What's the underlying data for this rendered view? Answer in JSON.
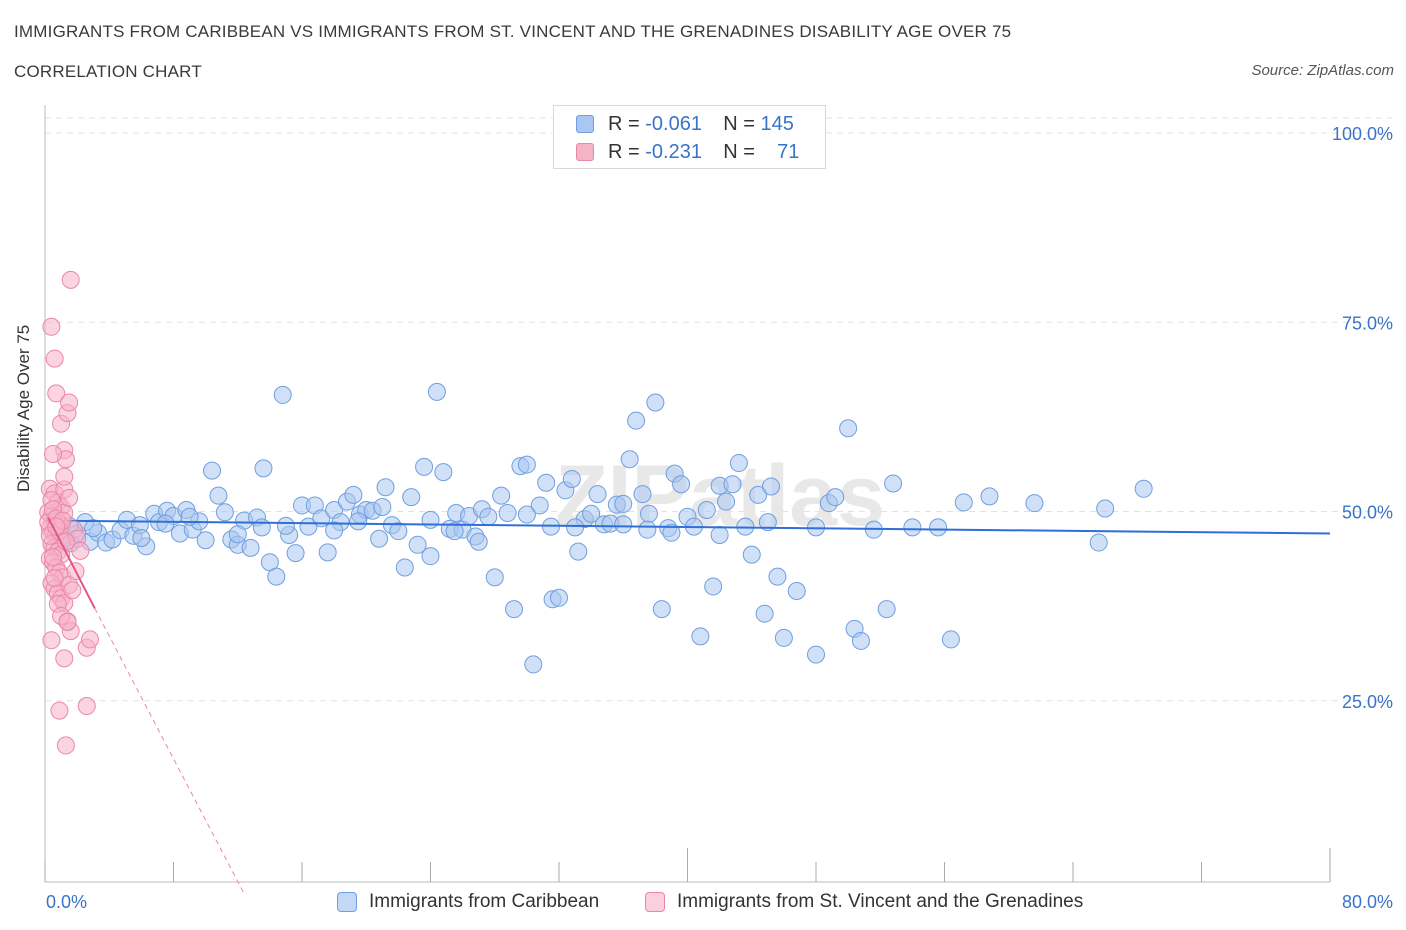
{
  "title": "IMMIGRANTS FROM CARIBBEAN VS IMMIGRANTS FROM ST. VINCENT AND THE GRENADINES DISABILITY AGE OVER 75",
  "subtitle": "CORRELATION CHART",
  "source": "Source: ZipAtlas.com",
  "watermark": "ZIPatlas",
  "legend": {
    "r_label": "R =",
    "n_label": "N =",
    "series1": {
      "r": "-0.061",
      "n": "145"
    },
    "series2": {
      "r": "-0.231",
      "n": "71"
    }
  },
  "colors": {
    "series1_fill": "#a9c7f0",
    "series1_stroke": "#6f9fe0",
    "series1_line": "#2f6fd6",
    "series2_fill": "#f5b3c8",
    "series2_stroke": "#ec86a8",
    "series2_line": "#e0558a",
    "axis_text": "#3a73c9",
    "grid": "#e2e2e2"
  },
  "chart_data": {
    "type": "scatter",
    "title": "IMMIGRANTS FROM CARIBBEAN VS IMMIGRANTS FROM ST. VINCENT AND THE GRENADINES DISABILITY AGE OVER 75",
    "xlabel": "",
    "ylabel": "Disability Age Over 75",
    "xlim": [
      0,
      80
    ],
    "ylim": [
      0,
      100
    ],
    "x_tick_labels": [
      "0.0%",
      "80.0%"
    ],
    "y_tick_labels": [
      "100.0%",
      "75.0%",
      "50.0%",
      "25.0%"
    ],
    "y_ticks": [
      100,
      75,
      50,
      25
    ],
    "grid": true,
    "legend_position": "top-center",
    "series": [
      {
        "name": "Immigrants from Caribbean",
        "r": -0.061,
        "n": 145,
        "trend": {
          "x": [
            0,
            80
          ],
          "y": [
            48.8,
            47.1
          ]
        },
        "points": [
          [
            0.8,
            47.8
          ],
          [
            1.2,
            46.5
          ],
          [
            1.6,
            45.8
          ],
          [
            2.0,
            47.1
          ],
          [
            2.5,
            48.6
          ],
          [
            2.8,
            46.0
          ],
          [
            3.3,
            47.2
          ],
          [
            3.8,
            45.9
          ],
          [
            4.2,
            46.3
          ],
          [
            4.7,
            47.5
          ],
          [
            5.1,
            48.9
          ],
          [
            5.5,
            46.8
          ],
          [
            5.9,
            48.2
          ],
          [
            6.3,
            45.4
          ],
          [
            6.8,
            49.7
          ],
          [
            7.1,
            48.6
          ],
          [
            7.6,
            50.1
          ],
          [
            8.0,
            49.4
          ],
          [
            8.4,
            47.1
          ],
          [
            8.8,
            50.2
          ],
          [
            9.2,
            47.6
          ],
          [
            9.6,
            48.7
          ],
          [
            10.0,
            46.2
          ],
          [
            10.4,
            55.4
          ],
          [
            10.8,
            52.1
          ],
          [
            11.2,
            49.9
          ],
          [
            11.6,
            46.3
          ],
          [
            12.0,
            45.6
          ],
          [
            12.4,
            48.8
          ],
          [
            12.8,
            45.2
          ],
          [
            13.2,
            49.2
          ],
          [
            13.6,
            55.7
          ],
          [
            14.0,
            43.3
          ],
          [
            14.4,
            41.4
          ],
          [
            14.8,
            65.4
          ],
          [
            15.2,
            46.9
          ],
          [
            15.6,
            44.5
          ],
          [
            16.0,
            50.8
          ],
          [
            16.4,
            48.0
          ],
          [
            16.8,
            50.8
          ],
          [
            17.2,
            49.1
          ],
          [
            17.6,
            44.6
          ],
          [
            18.0,
            50.2
          ],
          [
            18.4,
            48.6
          ],
          [
            18.8,
            51.3
          ],
          [
            19.2,
            52.2
          ],
          [
            19.6,
            49.6
          ],
          [
            20.0,
            50.2
          ],
          [
            20.4,
            50.1
          ],
          [
            20.8,
            46.4
          ],
          [
            21.2,
            53.2
          ],
          [
            21.6,
            48.2
          ],
          [
            22.0,
            47.4
          ],
          [
            22.4,
            42.6
          ],
          [
            22.8,
            51.9
          ],
          [
            23.2,
            45.6
          ],
          [
            23.6,
            55.9
          ],
          [
            24.0,
            44.1
          ],
          [
            24.4,
            65.8
          ],
          [
            24.8,
            55.2
          ],
          [
            25.2,
            47.7
          ],
          [
            25.6,
            49.8
          ],
          [
            26.0,
            47.6
          ],
          [
            26.4,
            49.4
          ],
          [
            26.8,
            46.7
          ],
          [
            27.2,
            50.3
          ],
          [
            27.6,
            49.3
          ],
          [
            28.0,
            41.3
          ],
          [
            28.4,
            52.1
          ],
          [
            28.8,
            49.8
          ],
          [
            29.2,
            37.1
          ],
          [
            29.6,
            56.0
          ],
          [
            30.0,
            56.2
          ],
          [
            30.4,
            29.8
          ],
          [
            30.8,
            50.8
          ],
          [
            31.2,
            53.8
          ],
          [
            31.6,
            38.4
          ],
          [
            32.0,
            38.6
          ],
          [
            32.4,
            52.8
          ],
          [
            32.8,
            54.3
          ],
          [
            33.2,
            44.7
          ],
          [
            33.6,
            49.0
          ],
          [
            34.0,
            49.7
          ],
          [
            34.4,
            52.3
          ],
          [
            34.8,
            48.3
          ],
          [
            35.2,
            48.4
          ],
          [
            35.6,
            50.9
          ],
          [
            36.0,
            51.0
          ],
          [
            36.4,
            56.9
          ],
          [
            36.8,
            62.0
          ],
          [
            37.2,
            52.3
          ],
          [
            37.6,
            49.7
          ],
          [
            38.0,
            64.4
          ],
          [
            38.4,
            37.1
          ],
          [
            38.8,
            47.8
          ],
          [
            39.2,
            55.0
          ],
          [
            39.6,
            53.6
          ],
          [
            40.0,
            49.3
          ],
          [
            40.4,
            48.0
          ],
          [
            40.8,
            33.5
          ],
          [
            41.2,
            50.2
          ],
          [
            41.6,
            40.1
          ],
          [
            42.0,
            53.4
          ],
          [
            42.4,
            51.3
          ],
          [
            42.8,
            53.6
          ],
          [
            43.2,
            56.4
          ],
          [
            43.6,
            48.0
          ],
          [
            44.0,
            44.3
          ],
          [
            44.4,
            52.2
          ],
          [
            44.8,
            36.5
          ],
          [
            45.2,
            53.3
          ],
          [
            45.6,
            41.4
          ],
          [
            46.0,
            33.3
          ],
          [
            46.8,
            39.5
          ],
          [
            48.0,
            31.1
          ],
          [
            48.8,
            51.1
          ],
          [
            49.2,
            51.9
          ],
          [
            50.0,
            61.0
          ],
          [
            50.4,
            34.5
          ],
          [
            50.8,
            32.9
          ],
          [
            51.6,
            47.6
          ],
          [
            52.4,
            37.1
          ],
          [
            52.8,
            53.7
          ],
          [
            54.0,
            47.9
          ],
          [
            55.6,
            47.9
          ],
          [
            56.4,
            33.1
          ],
          [
            57.2,
            51.2
          ],
          [
            58.8,
            52.0
          ],
          [
            61.6,
            51.1
          ],
          [
            65.6,
            45.9
          ],
          [
            66.0,
            50.4
          ],
          [
            68.4,
            53.0
          ],
          [
            3.0,
            47.8
          ],
          [
            6.0,
            46.5
          ],
          [
            9.0,
            49.3
          ],
          [
            12.0,
            47.0
          ],
          [
            15.0,
            48.1
          ],
          [
            18.0,
            47.5
          ],
          [
            21.0,
            50.6
          ],
          [
            24.0,
            48.9
          ],
          [
            27.0,
            46.0
          ],
          [
            30.0,
            49.6
          ],
          [
            33.0,
            47.9
          ],
          [
            36.0,
            48.3
          ],
          [
            39.0,
            47.2
          ],
          [
            42.0,
            46.9
          ],
          [
            45.0,
            48.6
          ],
          [
            48.0,
            47.9
          ],
          [
            1.5,
            48.1
          ],
          [
            7.5,
            48.4
          ],
          [
            13.5,
            47.9
          ],
          [
            19.5,
            48.7
          ],
          [
            25.5,
            47.4
          ],
          [
            31.5,
            48.0
          ],
          [
            37.5,
            47.6
          ]
        ]
      },
      {
        "name": "Immigrants from St. Vincent and the Grenadines",
        "r": -0.231,
        "n": 71,
        "trend": {
          "x": [
            0.2,
            3.1
          ],
          "y": [
            49.2,
            37.2
          ]
        },
        "trend_extended": {
          "x": [
            3.1,
            12.4
          ],
          "y": [
            37.2,
            -0.5
          ]
        },
        "points": [
          [
            0.4,
            74.4
          ],
          [
            0.6,
            70.2
          ],
          [
            0.7,
            65.6
          ],
          [
            1.0,
            61.6
          ],
          [
            1.2,
            58.1
          ],
          [
            1.4,
            63.0
          ],
          [
            1.6,
            80.6
          ],
          [
            1.5,
            64.4
          ],
          [
            1.3,
            56.9
          ],
          [
            0.5,
            57.6
          ],
          [
            0.3,
            53.0
          ],
          [
            0.6,
            52.4
          ],
          [
            0.8,
            51.2
          ],
          [
            1.0,
            50.6
          ],
          [
            1.2,
            49.8
          ],
          [
            0.4,
            49.4
          ],
          [
            0.6,
            48.9
          ],
          [
            0.8,
            48.4
          ],
          [
            1.0,
            48.1
          ],
          [
            0.3,
            47.8
          ],
          [
            0.5,
            47.3
          ],
          [
            0.7,
            46.9
          ],
          [
            0.9,
            46.5
          ],
          [
            1.1,
            46.1
          ],
          [
            0.4,
            45.7
          ],
          [
            0.6,
            45.2
          ],
          [
            0.8,
            44.7
          ],
          [
            1.0,
            44.3
          ],
          [
            0.3,
            43.8
          ],
          [
            0.5,
            43.3
          ],
          [
            0.7,
            42.6
          ],
          [
            0.9,
            41.9
          ],
          [
            1.1,
            41.3
          ],
          [
            0.4,
            40.5
          ],
          [
            0.6,
            39.8
          ],
          [
            0.8,
            39.2
          ],
          [
            1.0,
            38.5
          ],
          [
            1.2,
            37.9
          ],
          [
            1.4,
            35.5
          ],
          [
            1.6,
            34.2
          ],
          [
            0.4,
            33.0
          ],
          [
            1.2,
            30.6
          ],
          [
            2.6,
            32.0
          ],
          [
            2.8,
            33.1
          ],
          [
            0.9,
            23.7
          ],
          [
            2.6,
            24.3
          ],
          [
            1.3,
            19.1
          ],
          [
            1.2,
            52.9
          ],
          [
            1.5,
            51.8
          ],
          [
            1.8,
            47.6
          ],
          [
            2.0,
            46.4
          ],
          [
            2.2,
            44.8
          ],
          [
            0.2,
            49.9
          ],
          [
            0.2,
            48.6
          ],
          [
            0.3,
            46.8
          ],
          [
            0.4,
            51.5
          ],
          [
            0.5,
            50.3
          ],
          [
            0.7,
            49.1
          ],
          [
            0.9,
            47.4
          ],
          [
            1.1,
            48.8
          ],
          [
            1.3,
            46.0
          ],
          [
            1.5,
            40.3
          ],
          [
            1.7,
            39.6
          ],
          [
            0.6,
            41.2
          ],
          [
            0.8,
            37.8
          ],
          [
            1.0,
            36.2
          ],
          [
            1.2,
            54.6
          ],
          [
            1.4,
            35.4
          ],
          [
            0.5,
            44.0
          ],
          [
            0.7,
            48.0
          ],
          [
            1.9,
            42.1
          ]
        ]
      }
    ]
  },
  "bottom_legend": {
    "series1_label": "Immigrants from Caribbean",
    "series2_label": "Immigrants from St. Vincent and the Grenadines"
  }
}
